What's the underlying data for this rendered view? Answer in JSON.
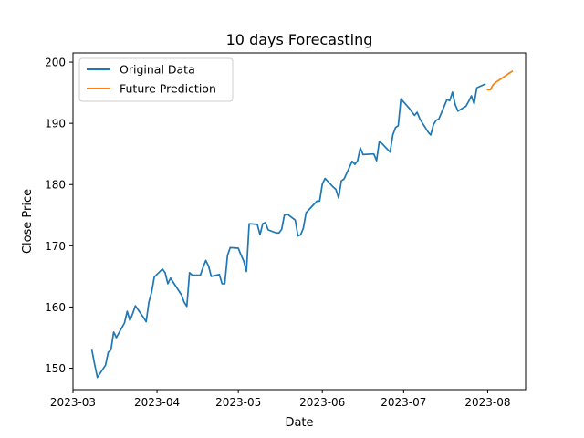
{
  "chart_data": {
    "type": "line",
    "title": "10 days Forecasting",
    "xlabel": "Date",
    "ylabel": "Close Price",
    "xlim": [
      "2023-03-01",
      "2023-08-15"
    ],
    "ylim": [
      146.5,
      201.5
    ],
    "x_ticks": [
      "2023-03-01",
      "2023-04-01",
      "2023-05-01",
      "2023-06-01",
      "2023-07-01",
      "2023-08-01"
    ],
    "x_tick_labels": [
      "2023-03",
      "2023-04",
      "2023-05",
      "2023-06",
      "2023-07",
      "2023-08"
    ],
    "y_ticks": [
      150,
      160,
      170,
      180,
      190,
      200
    ],
    "y_tick_labels": [
      "150",
      "160",
      "170",
      "180",
      "190",
      "200"
    ],
    "grid": false,
    "legend_position": "top-left",
    "series": [
      {
        "name": "Original Data",
        "color": "#1f77b4",
        "points": [
          [
            "2023-03-08",
            152.9
          ],
          [
            "2023-03-09",
            150.6
          ],
          [
            "2023-03-10",
            148.5
          ],
          [
            "2023-03-13",
            150.5
          ],
          [
            "2023-03-14",
            152.6
          ],
          [
            "2023-03-15",
            153.0
          ],
          [
            "2023-03-16",
            155.9
          ],
          [
            "2023-03-17",
            155.0
          ],
          [
            "2023-03-20",
            157.4
          ],
          [
            "2023-03-21",
            159.3
          ],
          [
            "2023-03-22",
            157.8
          ],
          [
            "2023-03-23",
            158.9
          ],
          [
            "2023-03-24",
            160.2
          ],
          [
            "2023-03-27",
            158.3
          ],
          [
            "2023-03-28",
            157.6
          ],
          [
            "2023-03-29",
            160.8
          ],
          [
            "2023-03-30",
            162.4
          ],
          [
            "2023-03-31",
            164.9
          ],
          [
            "2023-04-03",
            166.2
          ],
          [
            "2023-04-04",
            165.6
          ],
          [
            "2023-04-05",
            163.8
          ],
          [
            "2023-04-06",
            164.7
          ],
          [
            "2023-04-10",
            162.0
          ],
          [
            "2023-04-11",
            160.8
          ],
          [
            "2023-04-12",
            160.1
          ],
          [
            "2023-04-13",
            165.6
          ],
          [
            "2023-04-14",
            165.2
          ],
          [
            "2023-04-17",
            165.2
          ],
          [
            "2023-04-18",
            166.5
          ],
          [
            "2023-04-19",
            167.6
          ],
          [
            "2023-04-20",
            166.7
          ],
          [
            "2023-04-21",
            165.0
          ],
          [
            "2023-04-24",
            165.3
          ],
          [
            "2023-04-25",
            163.8
          ],
          [
            "2023-04-26",
            163.8
          ],
          [
            "2023-04-27",
            168.4
          ],
          [
            "2023-04-28",
            169.7
          ],
          [
            "2023-05-01",
            169.6
          ],
          [
            "2023-05-02",
            168.5
          ],
          [
            "2023-05-03",
            167.5
          ],
          [
            "2023-05-04",
            165.8
          ],
          [
            "2023-05-05",
            173.6
          ],
          [
            "2023-05-08",
            173.5
          ],
          [
            "2023-05-09",
            171.8
          ],
          [
            "2023-05-10",
            173.6
          ],
          [
            "2023-05-11",
            173.8
          ],
          [
            "2023-05-12",
            172.6
          ],
          [
            "2023-05-15",
            172.1
          ],
          [
            "2023-05-16",
            172.1
          ],
          [
            "2023-05-17",
            172.7
          ],
          [
            "2023-05-18",
            175.0
          ],
          [
            "2023-05-19",
            175.2
          ],
          [
            "2023-05-22",
            174.2
          ],
          [
            "2023-05-23",
            171.6
          ],
          [
            "2023-05-24",
            171.8
          ],
          [
            "2023-05-25",
            172.9
          ],
          [
            "2023-05-26",
            175.4
          ],
          [
            "2023-05-30",
            177.3
          ],
          [
            "2023-05-31",
            177.3
          ],
          [
            "2023-06-01",
            180.1
          ],
          [
            "2023-06-02",
            181.0
          ],
          [
            "2023-06-05",
            179.6
          ],
          [
            "2023-06-06",
            179.2
          ],
          [
            "2023-06-07",
            177.8
          ],
          [
            "2023-06-08",
            180.6
          ],
          [
            "2023-06-09",
            180.9
          ],
          [
            "2023-06-12",
            183.8
          ],
          [
            "2023-06-13",
            183.3
          ],
          [
            "2023-06-14",
            183.9
          ],
          [
            "2023-06-15",
            186.0
          ],
          [
            "2023-06-16",
            184.9
          ],
          [
            "2023-06-20",
            185.0
          ],
          [
            "2023-06-21",
            183.9
          ],
          [
            "2023-06-22",
            187.0
          ],
          [
            "2023-06-23",
            186.7
          ],
          [
            "2023-06-26",
            185.3
          ],
          [
            "2023-06-27",
            188.1
          ],
          [
            "2023-06-28",
            189.3
          ],
          [
            "2023-06-29",
            189.6
          ],
          [
            "2023-06-30",
            194.0
          ],
          [
            "2023-07-03",
            192.5
          ],
          [
            "2023-07-05",
            191.3
          ],
          [
            "2023-07-06",
            191.8
          ],
          [
            "2023-07-07",
            190.7
          ],
          [
            "2023-07-10",
            188.6
          ],
          [
            "2023-07-11",
            188.1
          ],
          [
            "2023-07-12",
            189.8
          ],
          [
            "2023-07-13",
            190.5
          ],
          [
            "2023-07-14",
            190.7
          ],
          [
            "2023-07-17",
            193.9
          ],
          [
            "2023-07-18",
            193.7
          ],
          [
            "2023-07-19",
            195.1
          ],
          [
            "2023-07-20",
            193.1
          ],
          [
            "2023-07-21",
            192.0
          ],
          [
            "2023-07-24",
            192.8
          ],
          [
            "2023-07-25",
            193.6
          ],
          [
            "2023-07-26",
            194.5
          ],
          [
            "2023-07-27",
            193.2
          ],
          [
            "2023-07-28",
            195.8
          ],
          [
            "2023-07-31",
            196.4
          ]
        ]
      },
      {
        "name": "Future Prediction",
        "color": "#ff7f0e",
        "points": [
          [
            "2023-08-01",
            195.5
          ],
          [
            "2023-08-02",
            195.5
          ],
          [
            "2023-08-03",
            196.3
          ],
          [
            "2023-08-04",
            196.7
          ],
          [
            "2023-08-05",
            197.0
          ],
          [
            "2023-08-06",
            197.3
          ],
          [
            "2023-08-07",
            197.6
          ],
          [
            "2023-08-08",
            197.9
          ],
          [
            "2023-08-09",
            198.2
          ],
          [
            "2023-08-10",
            198.5
          ]
        ]
      }
    ]
  }
}
